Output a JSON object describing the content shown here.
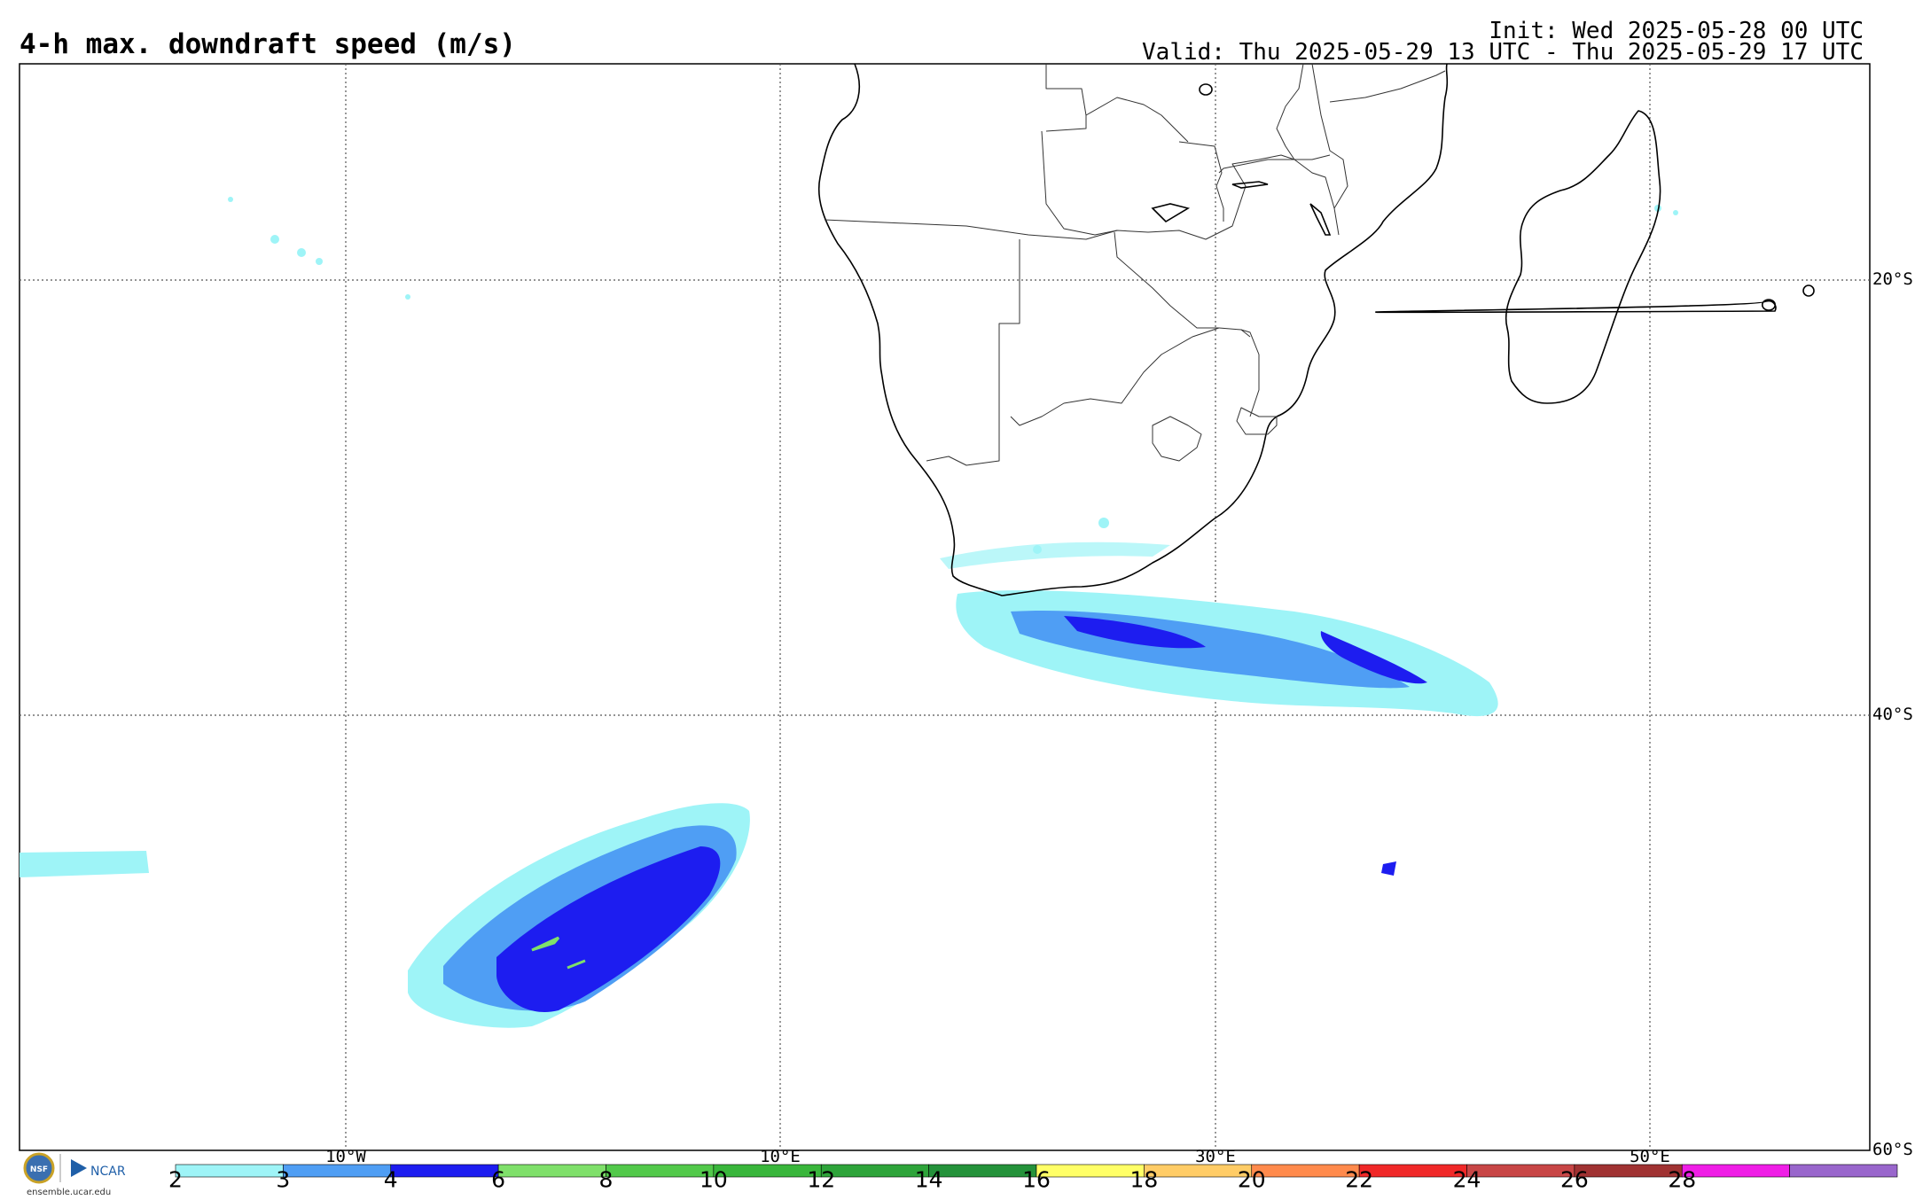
{
  "title": "4-h max. downdraft speed (m/s)",
  "init_line": "Init: Wed 2025-05-28 00 UTC",
  "valid_line": "Valid: Thu 2025-05-29 13 UTC - Thu 2025-05-29 17 UTC",
  "lat_labels": [
    "20°S",
    "40°S",
    "60°S"
  ],
  "lon_labels": [
    "10°W",
    "10°E",
    "30°E",
    "50°E"
  ],
  "colorbar": {
    "ticks": [
      "2",
      "3",
      "4",
      "6",
      "8",
      "10",
      "12",
      "14",
      "16",
      "18",
      "20",
      "22",
      "24",
      "26",
      "28"
    ],
    "colors": [
      "#9ef4f7",
      "#4f9ef4",
      "#1d1df0",
      "#7fe06a",
      "#52c94a",
      "#39b63b",
      "#2ea43a",
      "#24923a",
      "#ffff66",
      "#ffcc66",
      "#ff8a4c",
      "#f02828",
      "#c84646",
      "#a03232",
      "#ef1ee6",
      "#9966cc"
    ]
  },
  "logo": {
    "org": "NCAR",
    "seal": "NSF",
    "url": "ensemble.ucar.edu"
  }
}
